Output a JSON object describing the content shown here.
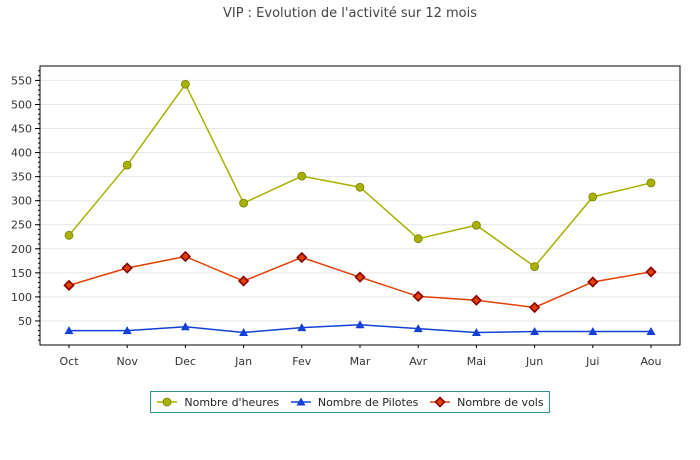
{
  "chart_data": {
    "type": "line",
    "title": "VIP : Evolution de l'activité sur 12 mois",
    "categories": [
      "Oct",
      "Nov",
      "Dec",
      "Jan",
      "Fev",
      "Mar",
      "Avr",
      "Mai",
      "Jun",
      "Jui",
      "Aou"
    ],
    "series": [
      {
        "name": "Nombre d'heures",
        "color": "#a8b000",
        "marker": "circle",
        "values": [
          228,
          374,
          542,
          295,
          351,
          328,
          221,
          249,
          163,
          308,
          337
        ]
      },
      {
        "name": "Nombre de Pilotes",
        "color": "#1240d8",
        "marker": "triangle",
        "values": [
          30,
          30,
          38,
          26,
          36,
          42,
          34,
          26,
          28,
          28,
          28
        ]
      },
      {
        "name": "Nombre de vols",
        "color": "#e04000",
        "marker": "diamond",
        "values": [
          124,
          160,
          184,
          133,
          182,
          141,
          101,
          93,
          78,
          131,
          152
        ]
      }
    ],
    "ylim": [
      0,
      550
    ],
    "yticks": [
      50,
      100,
      150,
      200,
      250,
      300,
      350,
      400,
      450,
      500,
      550
    ],
    "xlabel": "",
    "ylabel": "",
    "grid": true,
    "legend_position": "bottom"
  }
}
